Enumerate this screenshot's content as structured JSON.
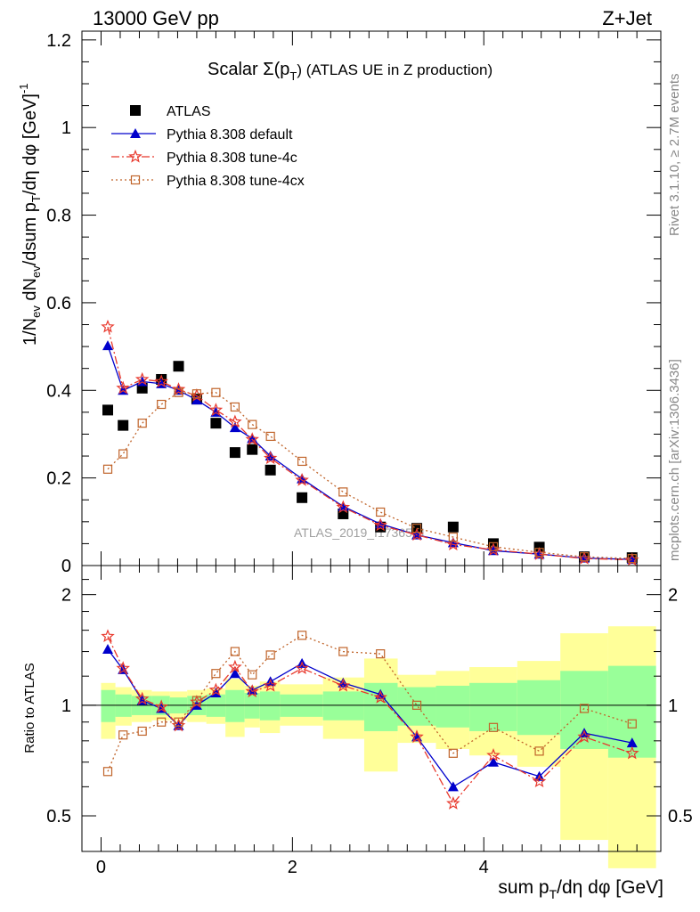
{
  "header": {
    "energy_label": "13000 GeV pp",
    "process_label": "Z+Jet"
  },
  "side_labels": {
    "rivet": "Rivet 3.1.10, ≥ 2.7M events",
    "source": "mcplots.cern.ch [arXiv:1306.3436]"
  },
  "watermark": "ATLAS_2019_I1736531",
  "chart_data": [
    {
      "type": "line",
      "title_main": "Scalar Σ(p",
      "title_sub": "T",
      "title_tail": ")  (ATLAS UE in Z production)",
      "xlabel": "sum p_T/dη dφ [GeV]",
      "ylabel": "1/N_ev dN_ev/dsum p_T/dη dφ [GeV]^-1",
      "xlim": [
        -0.2,
        5.85
      ],
      "ylim": [
        0,
        1.22
      ],
      "y_ticks": [
        "0",
        "0.2",
        "0.4",
        "0.6",
        "0.8",
        "1",
        "1.2"
      ],
      "grid": false,
      "legend_position": "top-left",
      "x": [
        0.07,
        0.23,
        0.43,
        0.63,
        0.81,
        1.0,
        1.2,
        1.4,
        1.58,
        1.77,
        2.1,
        2.53,
        2.92,
        3.3,
        3.68,
        4.1,
        4.58,
        5.05,
        5.55
      ],
      "series": [
        {
          "name": "ATLAS",
          "color": "#000000",
          "marker": "square-filled",
          "values": [
            0.355,
            0.32,
            0.405,
            0.425,
            0.455,
            0.38,
            0.325,
            0.258,
            0.265,
            0.218,
            0.155,
            0.118,
            0.088,
            0.085,
            0.088,
            0.05,
            0.042,
            0.02,
            0.018
          ]
        },
        {
          "name": "Pythia 8.308 default",
          "color": "#0000cc",
          "marker": "triangle",
          "dash": "",
          "values": [
            0.502,
            0.4,
            0.42,
            0.415,
            0.4,
            0.378,
            0.35,
            0.315,
            0.29,
            0.25,
            0.198,
            0.135,
            0.095,
            0.07,
            0.052,
            0.034,
            0.026,
            0.017,
            0.014
          ]
        },
        {
          "name": "Pythia 8.308 tune-4c",
          "color": "#e8382c",
          "marker": "star",
          "dash": "9,3,2,3",
          "values": [
            0.545,
            0.405,
            0.425,
            0.42,
            0.402,
            0.388,
            0.355,
            0.328,
            0.288,
            0.245,
            0.195,
            0.133,
            0.092,
            0.07,
            0.048,
            0.036,
            0.026,
            0.016,
            0.013
          ]
        },
        {
          "name": "Pythia 8.308 tune-4cx",
          "color": "#c0642a",
          "marker": "square-open",
          "dash": "2,3",
          "values": [
            0.22,
            0.255,
            0.325,
            0.368,
            0.395,
            0.392,
            0.395,
            0.362,
            0.322,
            0.295,
            0.238,
            0.168,
            0.122,
            0.085,
            0.065,
            0.043,
            0.03,
            0.02,
            0.016
          ]
        }
      ]
    },
    {
      "type": "line",
      "ylabel": "Ratio to ATLAS",
      "ylim": [
        0.4,
        2.4
      ],
      "y_ticks": [
        "0.5",
        "1",
        "2"
      ],
      "x_ticks": [
        "0",
        "2",
        "4"
      ],
      "bin_edges": [
        0.0,
        0.15,
        0.32,
        0.53,
        0.72,
        0.9,
        1.1,
        1.3,
        1.5,
        1.66,
        1.87,
        2.32,
        2.75,
        3.1,
        3.5,
        3.85,
        4.35,
        4.8,
        5.3,
        5.8
      ],
      "band_yellow_low": [
        0.81,
        0.88,
        0.9,
        0.91,
        0.91,
        0.9,
        0.89,
        0.82,
        0.87,
        0.84,
        0.88,
        0.81,
        0.66,
        0.79,
        0.76,
        0.73,
        0.68,
        0.43,
        0.36
      ],
      "band_yellow_high": [
        1.15,
        1.12,
        1.1,
        1.09,
        1.09,
        1.1,
        1.11,
        1.18,
        1.13,
        1.16,
        1.14,
        1.19,
        1.34,
        1.21,
        1.24,
        1.27,
        1.32,
        1.57,
        1.64
      ],
      "band_green_low": [
        0.9,
        0.93,
        0.94,
        0.94,
        0.95,
        0.94,
        0.93,
        0.9,
        0.92,
        0.91,
        0.93,
        0.91,
        0.85,
        0.88,
        0.87,
        0.85,
        0.83,
        0.76,
        0.72
      ],
      "band_green_high": [
        1.1,
        1.07,
        1.06,
        1.06,
        1.05,
        1.06,
        1.07,
        1.1,
        1.08,
        1.09,
        1.07,
        1.09,
        1.15,
        1.12,
        1.13,
        1.15,
        1.17,
        1.24,
        1.28
      ],
      "series": [
        {
          "name": "Pythia 8.308 default",
          "values": [
            1.42,
            1.25,
            1.03,
            0.98,
            0.88,
            1.0,
            1.08,
            1.22,
            1.1,
            1.16,
            1.3,
            1.15,
            1.07,
            0.82,
            0.6,
            0.7,
            0.64,
            0.84,
            0.79
          ]
        },
        {
          "name": "Pythia 8.308 tune-4c",
          "values": [
            1.54,
            1.26,
            1.04,
            0.99,
            0.88,
            1.02,
            1.1,
            1.27,
            1.09,
            1.13,
            1.26,
            1.13,
            1.05,
            0.82,
            0.54,
            0.73,
            0.62,
            0.82,
            0.74
          ]
        },
        {
          "name": "Pythia 8.308 tune-4cx",
          "values": [
            0.66,
            0.83,
            0.85,
            0.9,
            0.9,
            1.03,
            1.22,
            1.4,
            1.21,
            1.37,
            1.55,
            1.4,
            1.38,
            1.0,
            0.74,
            0.87,
            0.75,
            0.98,
            0.89
          ]
        }
      ]
    }
  ]
}
